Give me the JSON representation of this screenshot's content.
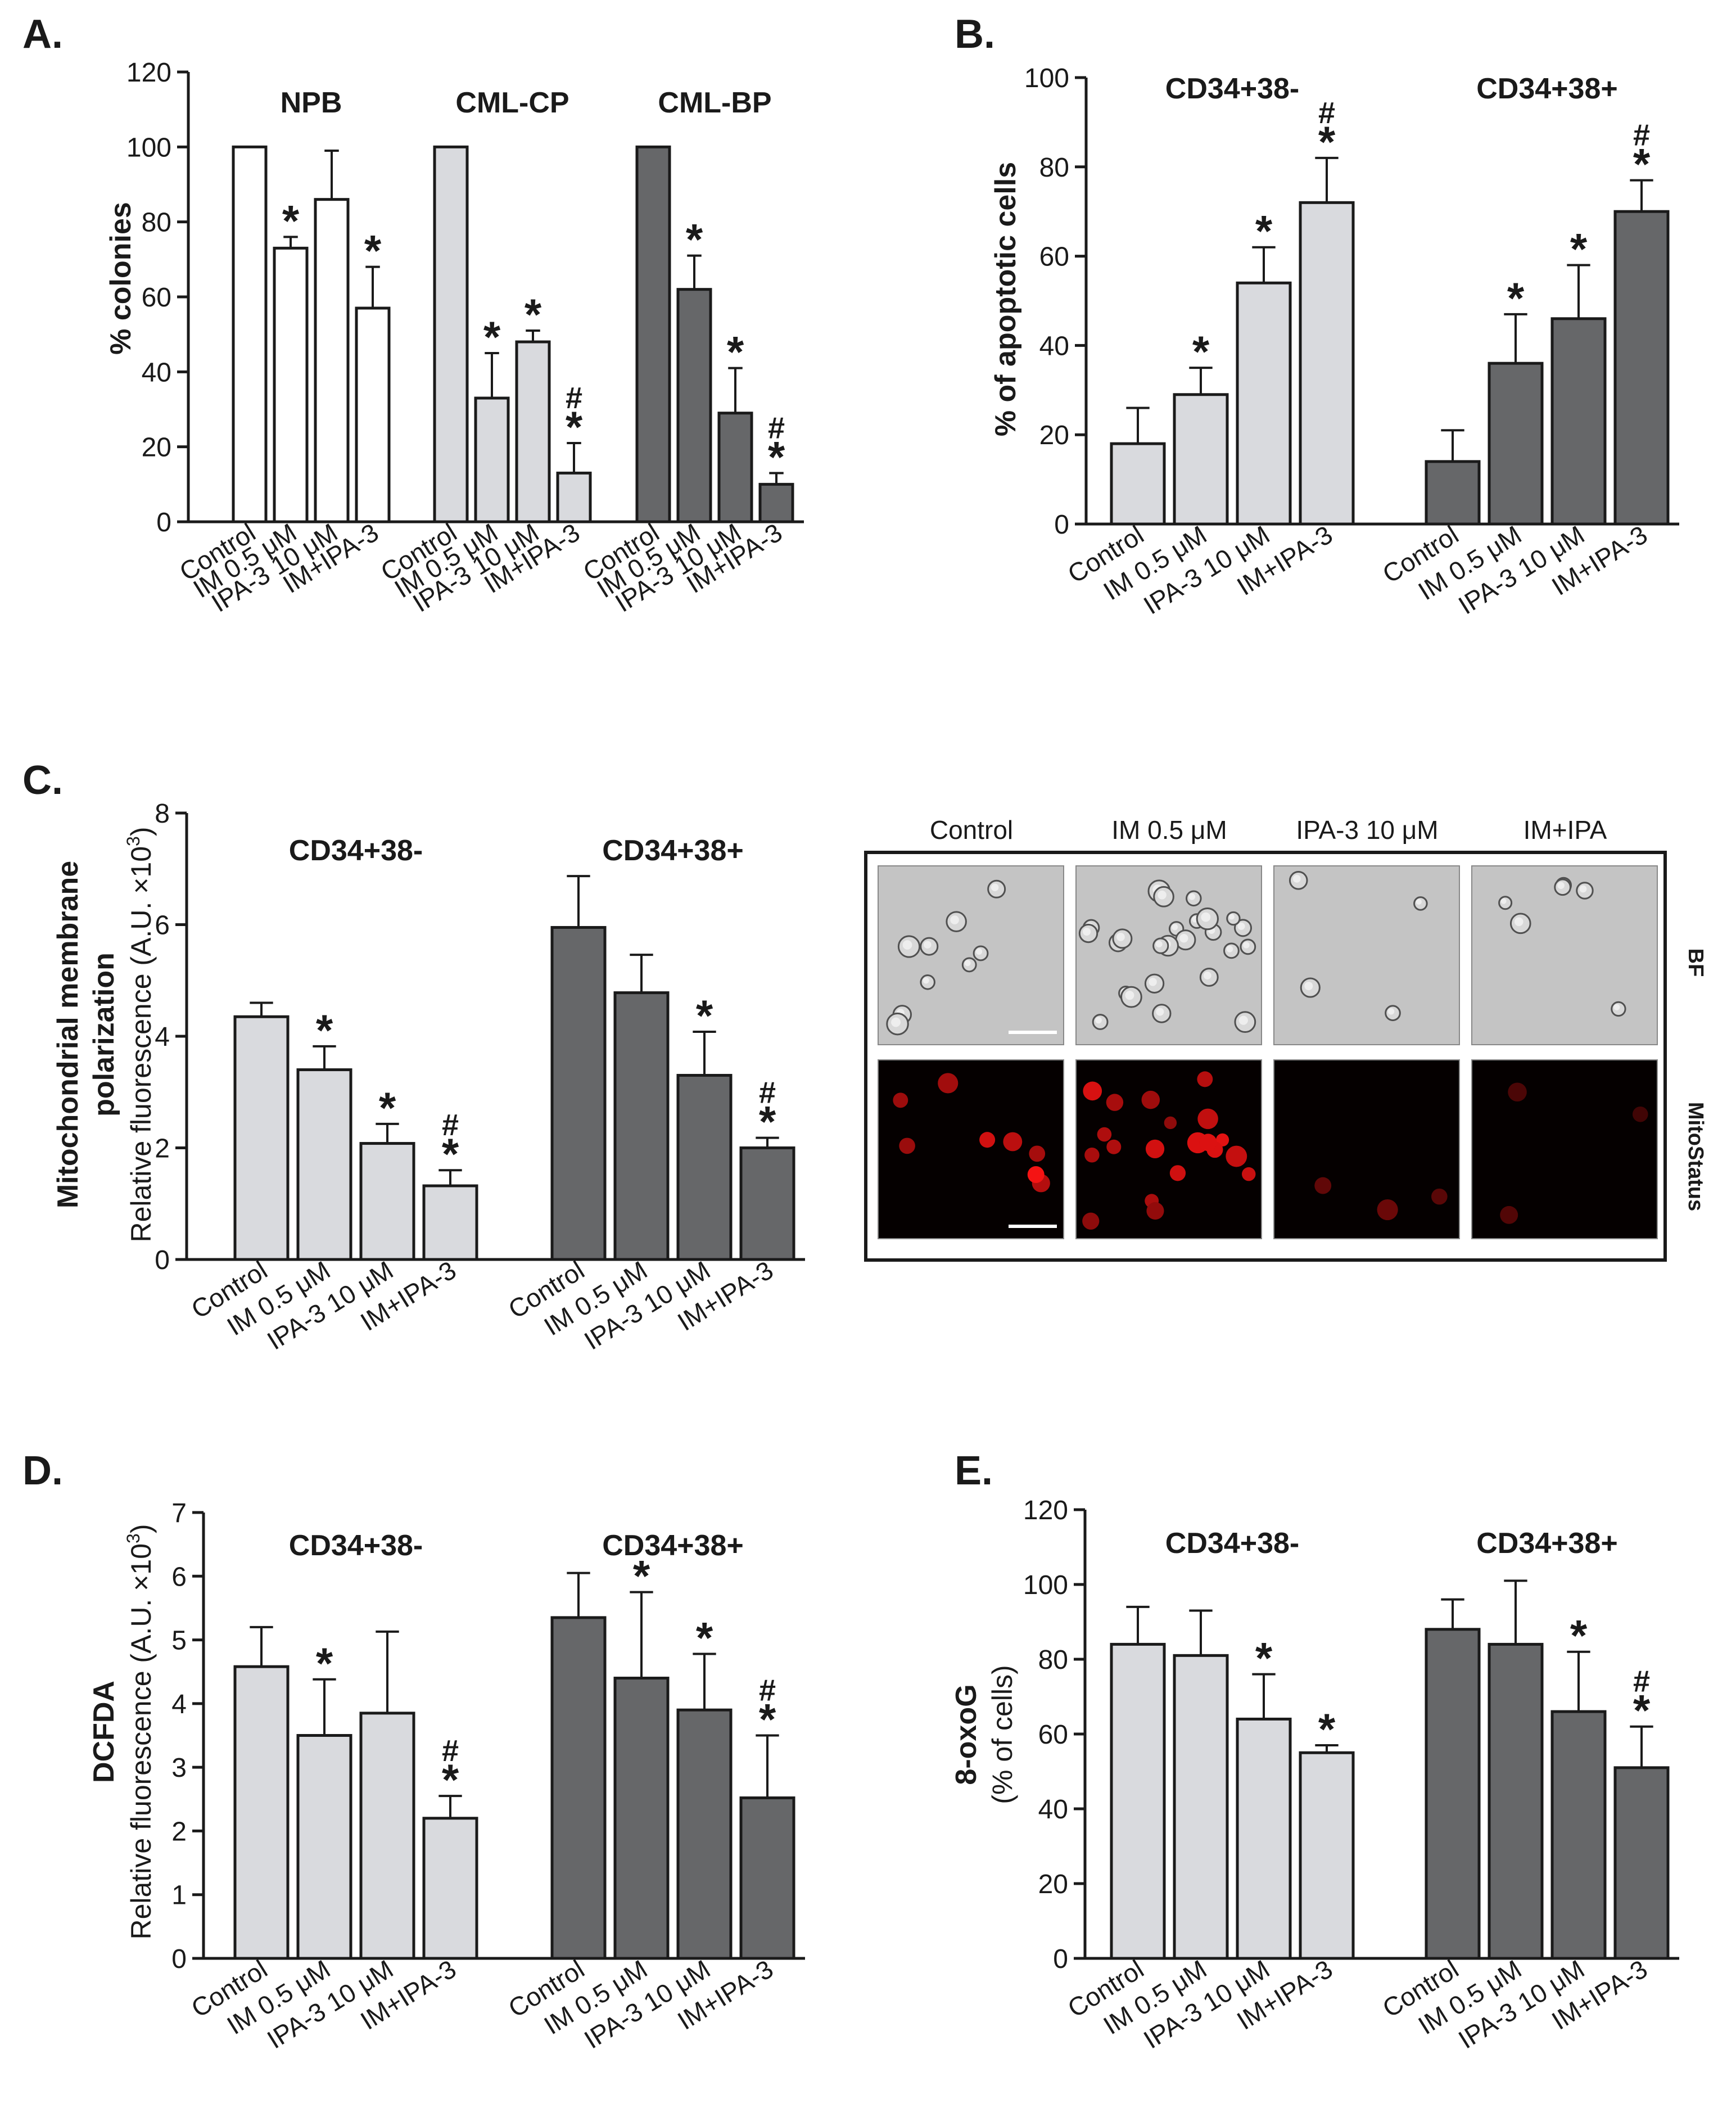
{
  "labels": {
    "star": "*",
    "hash": "#",
    "conditions": [
      "Control",
      "IM 0.5 μM",
      "IPA-3 10 μM",
      "IM+IPA-3"
    ]
  },
  "colors": {
    "white": "#ffffff",
    "light": "#d9dade",
    "dark": "#666769",
    "stroke": "#1a1a1a"
  },
  "chart_data": [
    {
      "panel": "A.",
      "type": "bar",
      "ylabel": "% colonies",
      "ylim": [
        0,
        120
      ],
      "yticks": [
        0,
        20,
        40,
        60,
        80,
        100,
        120
      ],
      "groups": [
        {
          "name": "NPB",
          "color": "white",
          "categories": [
            "Control",
            "IM 0.5 μM",
            "IPA-3 10 μM",
            "IM+IPA-3"
          ],
          "values": [
            100,
            73,
            86,
            57
          ],
          "errors": [
            0,
            3,
            13,
            11
          ],
          "marks": [
            "",
            "*",
            "",
            "*"
          ]
        },
        {
          "name": "CML-CP",
          "color": "light",
          "categories": [
            "Control",
            "IM 0.5 μM",
            "IPA-3 10 μM",
            "IM+IPA-3"
          ],
          "values": [
            100,
            33,
            48,
            13
          ],
          "errors": [
            0,
            12,
            3,
            8
          ],
          "marks": [
            "",
            "*",
            "*",
            "#*"
          ]
        },
        {
          "name": "CML-BP",
          "color": "dark",
          "categories": [
            "Control",
            "IM 0.5 μM",
            "IPA-3 10 μM",
            "IM+IPA-3"
          ],
          "values": [
            100,
            62,
            29,
            10
          ],
          "errors": [
            0,
            9,
            12,
            3
          ],
          "marks": [
            "",
            "*",
            "*",
            "#*"
          ]
        }
      ]
    },
    {
      "panel": "B.",
      "type": "bar",
      "ylabel": "% of apoptotic cells",
      "ylim": [
        0,
        100
      ],
      "yticks": [
        0,
        20,
        40,
        60,
        80,
        100
      ],
      "groups": [
        {
          "name": "CD34+38-",
          "color": "light",
          "categories": [
            "Control",
            "IM 0.5 μM",
            "IPA-3 10 μM",
            "IM+IPA-3"
          ],
          "values": [
            18,
            29,
            54,
            72
          ],
          "errors": [
            8,
            6,
            8,
            10
          ],
          "marks": [
            "",
            "*",
            "*",
            "#*"
          ]
        },
        {
          "name": "CD34+38+",
          "color": "dark",
          "categories": [
            "Control",
            "IM 0.5 μM",
            "IPA-3 10 μM",
            "IM+IPA-3"
          ],
          "values": [
            14,
            36,
            46,
            70
          ],
          "errors": [
            7,
            11,
            12,
            7
          ],
          "marks": [
            "",
            "*",
            "*",
            "#*"
          ]
        }
      ]
    },
    {
      "panel": "C.",
      "type": "bar",
      "ylabel_main": "Mitochondrial membrane",
      "ylabel_main2": "polarization",
      "ylabel_sub": "Relative fluorescence (A.U. ×10",
      "ylabel_sup": "3",
      "ylabel_close": ")",
      "ylim": [
        0,
        8
      ],
      "yticks": [
        0,
        2,
        4,
        6,
        8
      ],
      "groups": [
        {
          "name": "CD34+38-",
          "color": "light",
          "categories": [
            "Control",
            "IM 0.5 μM",
            "IPA-3 10 μM",
            "IM+IPA-3"
          ],
          "values": [
            4.35,
            3.4,
            2.08,
            1.32
          ],
          "errors": [
            0.25,
            0.42,
            0.35,
            0.28
          ],
          "marks": [
            "",
            "*",
            "*",
            "#*"
          ]
        },
        {
          "name": "CD34+38+",
          "color": "dark",
          "categories": [
            "Control",
            "IM 0.5 μM",
            "IPA-3 10 μM",
            "IM+IPA-3"
          ],
          "values": [
            5.95,
            4.78,
            3.3,
            2.0
          ],
          "errors": [
            0.92,
            0.68,
            0.78,
            0.18
          ],
          "marks": [
            "",
            "",
            "*",
            "#*"
          ]
        }
      ]
    },
    {
      "panel": "D.",
      "type": "bar",
      "ylabel_main": "DCFDA",
      "ylabel_sub": "Relative fluorescence (A.U. ×10",
      "ylabel_sup": "3",
      "ylabel_close": ")",
      "ylim": [
        0,
        7
      ],
      "yticks": [
        0,
        1,
        2,
        3,
        4,
        5,
        6,
        7
      ],
      "groups": [
        {
          "name": "CD34+38-",
          "color": "light",
          "categories": [
            "Control",
            "IM 0.5 μM",
            "IPA-3 10 μM",
            "IM+IPA-3"
          ],
          "values": [
            4.58,
            3.5,
            3.85,
            2.2
          ],
          "errors": [
            0.62,
            0.88,
            1.28,
            0.35
          ],
          "marks": [
            "",
            "*",
            "",
            "#*"
          ]
        },
        {
          "name": "CD34+38+",
          "color": "dark",
          "categories": [
            "Control",
            "IM 0.5 μM",
            "IPA-3 10 μM",
            "IM+IPA-3"
          ],
          "values": [
            5.35,
            4.4,
            3.9,
            2.52
          ],
          "errors": [
            0.7,
            1.35,
            0.88,
            0.98
          ],
          "marks": [
            "",
            "*",
            "*",
            "#*"
          ]
        }
      ]
    },
    {
      "panel": "E.",
      "type": "bar",
      "ylabel_main": "8-oxoG",
      "ylabel_sub": "(% of cells)",
      "ylim": [
        0,
        120
      ],
      "yticks": [
        0,
        20,
        40,
        60,
        80,
        100,
        120
      ],
      "groups": [
        {
          "name": "CD34+38-",
          "color": "light",
          "categories": [
            "Control",
            "IM 0.5 μM",
            "IPA-3 10 μM",
            "IM+IPA-3"
          ],
          "values": [
            84,
            81,
            64,
            55
          ],
          "errors": [
            10,
            12,
            12,
            2
          ],
          "marks": [
            "",
            "",
            "*",
            "*"
          ]
        },
        {
          "name": "CD34+38+",
          "color": "dark",
          "categories": [
            "Control",
            "IM 0.5 μM",
            "IPA-3 10 μM",
            "IM+IPA-3"
          ],
          "values": [
            88,
            84,
            66,
            51
          ],
          "errors": [
            8,
            17,
            16,
            11
          ],
          "marks": [
            "",
            "",
            "*",
            "#*"
          ]
        }
      ]
    }
  ],
  "micrographs": {
    "columns": [
      "Control",
      "IM 0.5 μM",
      "IPA-3 10 μM",
      "IM+IPA"
    ],
    "rows": [
      "BF",
      "MitoStatus"
    ]
  }
}
